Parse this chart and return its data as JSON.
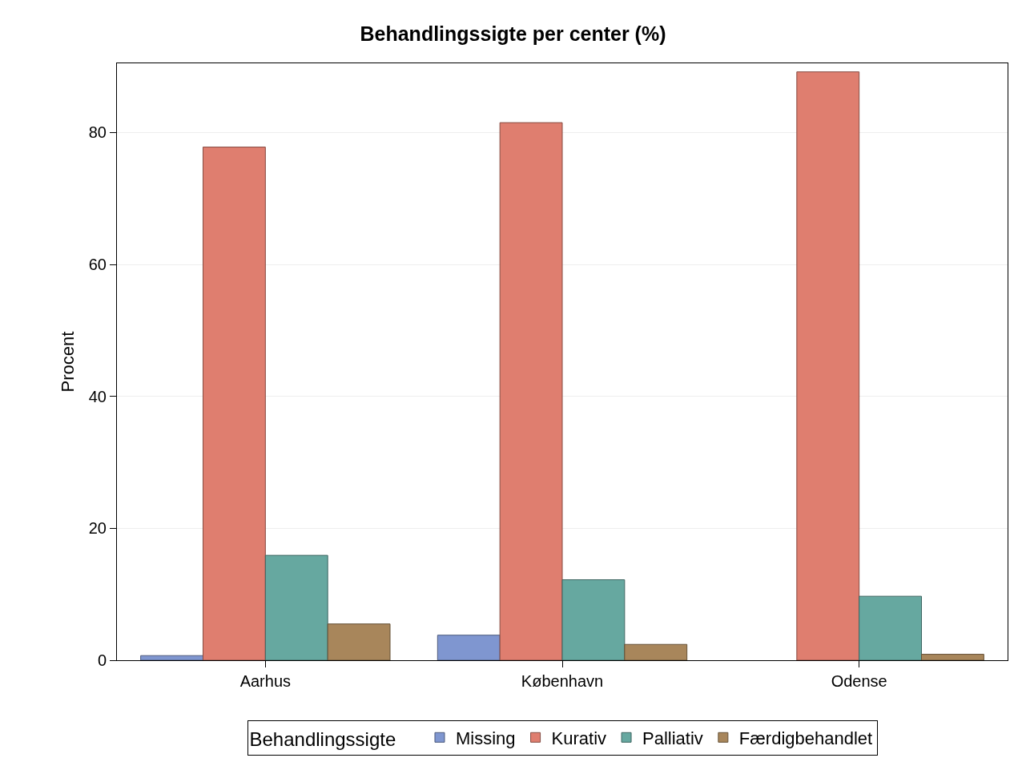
{
  "chart_data": {
    "type": "bar",
    "title": "Behandlingssigte per center (%)",
    "ylabel": "Procent",
    "legend_title": "Behandlingssigte",
    "categories": [
      "Aarhus",
      "København",
      "Odense"
    ],
    "series": [
      {
        "name": "Missing",
        "color": "#7f96d0",
        "values": [
          0.7,
          3.8,
          null
        ]
      },
      {
        "name": "Kurativ",
        "color": "#df7e6f",
        "values": [
          77.8,
          81.5,
          89.2
        ]
      },
      {
        "name": "Palliativ",
        "color": "#66a8a0",
        "values": [
          15.9,
          12.2,
          9.7
        ]
      },
      {
        "name": "Færdigbehandlet",
        "color": "#a8865b",
        "values": [
          5.5,
          2.4,
          0.9
        ]
      }
    ],
    "ylim": [
      0,
      90.5
    ],
    "yticks": [
      0,
      20,
      40,
      60,
      80
    ],
    "grid": "y",
    "legend": "bottom"
  }
}
